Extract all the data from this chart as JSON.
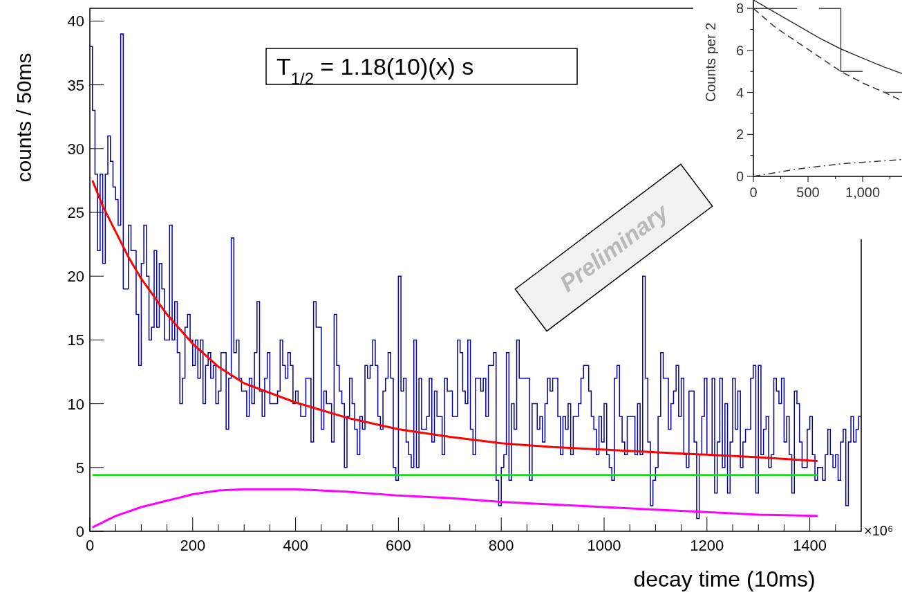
{
  "chart_data": [
    {
      "type": "histogram",
      "xlabel": "decay time (10ms)",
      "ylabel": "counts / 50ms",
      "annotations": [
        "T$_{1/2}$ = 1.18(10)(x) s",
        "Preliminary",
        "×10⁶"
      ],
      "xlim": [
        0,
        1500
      ],
      "ylim": [
        0,
        41
      ],
      "xticks": [
        0,
        {
          "value": 50,
          "label": null
        },
        {
          "value": 100,
          "label": null
        },
        {
          "value": 150,
          "label": null
        },
        200,
        {
          "value": 250,
          "label": null
        },
        {
          "value": 300,
          "label": null
        },
        {
          "value": 350,
          "label": null
        },
        400,
        {
          "value": 450,
          "label": null
        },
        {
          "value": 500,
          "label": null
        },
        {
          "value": 550,
          "label": null
        },
        600,
        {
          "value": 650,
          "label": null
        },
        {
          "value": 700,
          "label": null
        },
        {
          "value": 750,
          "label": null
        },
        800,
        {
          "value": 850,
          "label": null
        },
        {
          "value": 900,
          "label": null
        },
        {
          "value": 950,
          "label": null
        },
        1000,
        {
          "value": 1050,
          "label": null
        },
        {
          "value": 1100,
          "label": null
        },
        {
          "value": 1150,
          "label": null
        },
        1200,
        {
          "value": 1250,
          "label": null
        },
        {
          "value": 1300,
          "label": null
        },
        {
          "value": 1350,
          "label": null
        },
        1400,
        {
          "value": 1450,
          "label": null
        }
      ],
      "yticks": [
        0,
        5,
        10,
        15,
        20,
        25,
        30,
        35,
        40
      ],
      "bins": [
        0,
        5,
        10,
        15,
        20,
        25,
        30,
        35,
        40,
        45,
        50,
        55,
        60,
        65,
        70,
        75,
        80,
        85,
        90,
        95,
        100,
        105,
        110,
        115,
        120,
        125,
        130,
        135,
        140,
        145,
        150,
        155,
        160,
        165,
        170,
        175,
        180,
        185,
        190,
        195,
        200,
        205,
        210,
        215,
        220,
        225,
        230,
        235,
        240,
        245,
        250,
        255,
        260,
        265,
        270,
        275,
        280,
        285,
        290,
        295,
        300,
        305,
        310,
        315,
        320,
        325,
        330,
        335,
        340,
        345,
        350,
        355,
        360,
        365,
        370,
        375,
        380,
        385,
        390,
        395,
        400,
        405,
        410,
        415,
        420,
        425,
        430,
        435,
        440,
        445,
        450,
        455,
        460,
        465,
        470,
        475,
        480,
        485,
        490,
        495,
        500,
        505,
        510,
        515,
        520,
        525,
        530,
        535,
        540,
        545,
        550,
        555,
        560,
        565,
        570,
        575,
        580,
        585,
        590,
        595,
        600,
        605,
        610,
        615,
        620,
        625,
        630,
        635,
        640,
        645,
        650,
        655,
        660,
        665,
        670,
        675,
        680,
        685,
        690,
        695,
        700,
        705,
        710,
        715,
        720,
        725,
        730,
        735,
        740,
        745,
        750,
        755,
        760,
        765,
        770,
        775,
        780,
        785,
        790,
        795,
        800,
        805,
        810,
        815,
        820,
        825,
        830,
        835,
        840,
        845,
        850,
        855,
        860,
        865,
        870,
        875,
        880,
        885,
        890,
        895,
        900,
        905,
        910,
        915,
        920,
        925,
        930,
        935,
        940,
        945,
        950,
        955,
        960,
        965,
        970,
        975,
        980,
        985,
        990,
        995,
        1000,
        1005,
        1010,
        1015,
        1020,
        1025,
        1030,
        1035,
        1040,
        1045,
        1050,
        1055,
        1060,
        1065,
        1070,
        1075,
        1080,
        1085,
        1090,
        1095,
        1100,
        1105,
        1110,
        1115,
        1120,
        1125,
        1130,
        1135,
        1140,
        1145,
        1150,
        1155,
        1160,
        1165,
        1170,
        1175,
        1180,
        1185,
        1190,
        1195,
        1200,
        1205,
        1210,
        1215,
        1220,
        1225,
        1230,
        1235,
        1240,
        1245,
        1250,
        1255,
        1260,
        1265,
        1270,
        1275,
        1280,
        1285,
        1290,
        1295,
        1300,
        1305,
        1310,
        1315,
        1320,
        1325,
        1330,
        1335,
        1340,
        1345,
        1350,
        1355,
        1360,
        1365,
        1370,
        1375,
        1380,
        1385,
        1390,
        1395,
        1400,
        1405,
        1410,
        1415,
        1420,
        1425,
        1430,
        1435,
        1440,
        1445,
        1450,
        1455,
        1460,
        1465,
        1470,
        1475,
        1480,
        1485,
        1490,
        1495,
        1500
      ],
      "series": [
        {
          "type": "histogram",
          "color": "#000099",
          "values": [
            38,
            33,
            28,
            22,
            28,
            21,
            28,
            31,
            29,
            27,
            26,
            24,
            39,
            19,
            19,
            24,
            22,
            22,
            17,
            13,
            21,
            24,
            20,
            15,
            16,
            22,
            16,
            21,
            19,
            15,
            15,
            24,
            15,
            18,
            14,
            10,
            12,
            16,
            17,
            15,
            13,
            15,
            12,
            15,
            10,
            13,
            14,
            12,
            13,
            10,
            11,
            14,
            14,
            8,
            12,
            23,
            14,
            15,
            12,
            11,
            11,
            9,
            12,
            10,
            14,
            18,
            11,
            9,
            12,
            14,
            10,
            10,
            10,
            11,
            15,
            13,
            12,
            14,
            13,
            10,
            11,
            10,
            9,
            9,
            12,
            12,
            7,
            18,
            16,
            16,
            8,
            11,
            10,
            10,
            7,
            17,
            13,
            11,
            10,
            5,
            9,
            12,
            10,
            8,
            6,
            9,
            8,
            13,
            12,
            13,
            15,
            13,
            9,
            8,
            11,
            12,
            14,
            12,
            5,
            4,
            20,
            11,
            12,
            7,
            6,
            5,
            15,
            5,
            12,
            8,
            8,
            9,
            12,
            7,
            11,
            9,
            9,
            6,
            12,
            11,
            11,
            9,
            9,
            15,
            14,
            11,
            10,
            15,
            8,
            6,
            12,
            12,
            11,
            12,
            9,
            13,
            13,
            14,
            4,
            2,
            5,
            6,
            14,
            4,
            10,
            8,
            15,
            12,
            12,
            12,
            12,
            4,
            10,
            10,
            8,
            9,
            7,
            10,
            12,
            11,
            12,
            12,
            9,
            6,
            9,
            8,
            10,
            6,
            9,
            9,
            10,
            12,
            13,
            13,
            11,
            9,
            8,
            6,
            9,
            7,
            10,
            6,
            5,
            4,
            12,
            13,
            9,
            7,
            6,
            9,
            9,
            9,
            6,
            10,
            6,
            20,
            12,
            7,
            2,
            4,
            5,
            9,
            14,
            12,
            12,
            8,
            10,
            11,
            13,
            9,
            12,
            6,
            5,
            11,
            11,
            7,
            1,
            6,
            9,
            12,
            6,
            6,
            12,
            3,
            7,
            12,
            5,
            10,
            3,
            7,
            12,
            8,
            11,
            5,
            7,
            8,
            8,
            12,
            13,
            3,
            13,
            6,
            8,
            9,
            5,
            6,
            12,
            11,
            10,
            12,
            7,
            9,
            6,
            3,
            11,
            10,
            7,
            5,
            5,
            8,
            9,
            6,
            4,
            5,
            5,
            4,
            6,
            8,
            6,
            5,
            6,
            4,
            7,
            8,
            2,
            7,
            9,
            7,
            8,
            9
          ]
        },
        {
          "type": "line",
          "color": "#ff0000",
          "x": [
            5,
            25,
            50,
            75,
            100,
            150,
            200,
            250,
            300,
            400,
            500,
            600,
            700,
            800,
            900,
            1000,
            1100,
            1200,
            1300,
            1415
          ],
          "values": [
            27.5,
            25.5,
            23.5,
            21.5,
            19.8,
            17,
            14.7,
            12.9,
            11.6,
            10.1,
            8.9,
            8,
            7.4,
            6.9,
            6.6,
            6.4,
            6.2,
            6,
            5.8,
            5.5
          ]
        },
        {
          "type": "line",
          "color": "#00ee00",
          "x": [
            5,
            1415
          ],
          "values": [
            4.4,
            4.4
          ]
        },
        {
          "type": "line",
          "color": "#ff00ff",
          "x": [
            5,
            50,
            100,
            150,
            200,
            250,
            300,
            400,
            500,
            600,
            700,
            800,
            900,
            1000,
            1100,
            1200,
            1300,
            1415
          ],
          "values": [
            0.3,
            1.2,
            1.9,
            2.4,
            2.9,
            3.2,
            3.3,
            3.3,
            3.1,
            2.8,
            2.6,
            2.3,
            2.1,
            1.9,
            1.7,
            1.5,
            1.3,
            1.2
          ]
        }
      ]
    },
    {
      "type": "line",
      "ylabel": "Counts per 2",
      "xlim": [
        0,
        1360
      ],
      "ylim": [
        0,
        8.4
      ],
      "xticks": [
        0,
        {
          "value": 250,
          "label": null
        },
        500,
        {
          "value": 750,
          "label": null
        },
        {
          "value": 1000,
          "label": "1,000"
        },
        {
          "value": 1250,
          "label": null
        }
      ],
      "yticks": [
        0,
        {
          "value": 1,
          "label": null
        },
        2,
        {
          "value": 3,
          "label": null
        },
        4,
        {
          "value": 5,
          "label": null
        },
        6,
        {
          "value": 7,
          "label": null
        },
        8
      ],
      "series": [
        {
          "type": "line",
          "color": "#333333",
          "line_style": "solid",
          "x": [
            0,
            200,
            400,
            600,
            800,
            1000,
            1200,
            1360
          ],
          "values": [
            8.4,
            7.8,
            7.2,
            6.6,
            6.07,
            5.63,
            5.2,
            4.9
          ]
        },
        {
          "type": "line",
          "color": "#333333",
          "line_style": "dashed",
          "x": [
            0,
            200,
            400,
            600,
            800,
            1000,
            1200,
            1360
          ],
          "values": [
            8,
            7.1,
            6.4,
            5.7,
            5,
            4.45,
            4,
            3.6
          ]
        },
        {
          "type": "line",
          "color": "#333333",
          "line_style": "dashdot",
          "x": [
            0,
            400,
            800,
            1360
          ],
          "values": [
            0,
            0.35,
            0.6,
            0.8
          ]
        },
        {
          "type": "step",
          "color": "#444444",
          "x": [
            0,
            200,
            400,
            600,
            800,
            1000,
            1200,
            1360
          ],
          "values": [
            8,
            8,
            null,
            8,
            5,
            null,
            4,
            4
          ]
        }
      ]
    }
  ]
}
